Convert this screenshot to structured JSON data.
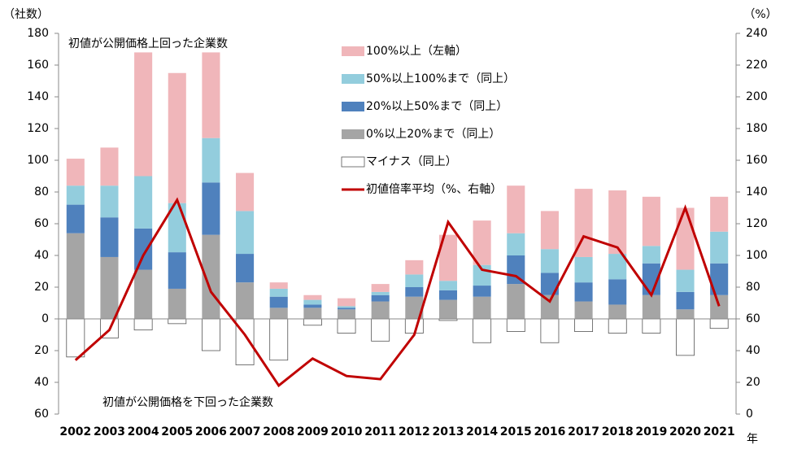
{
  "chart_data": {
    "type": "bar",
    "annotations": [
      "（社数）",
      "（%）",
      "年",
      "初値が公開価格上回った企業数",
      "初値が公開価格を下回った企業数"
    ],
    "categories": [
      "2002",
      "2003",
      "2004",
      "2005",
      "2006",
      "2007",
      "2008",
      "2009",
      "2010",
      "2011",
      "2012",
      "2013",
      "2014",
      "2015",
      "2016",
      "2017",
      "2018",
      "2019",
      "2020",
      "2021"
    ],
    "series": [
      {
        "name": "100%以上（左軸）",
        "color": "#f0b6ba",
        "values": [
          17,
          24,
          78,
          82,
          54,
          24,
          4,
          3,
          5,
          5,
          9,
          29,
          28,
          30,
          24,
          43,
          40,
          31,
          39,
          22
        ]
      },
      {
        "name": "50%以上100%まで（同上）",
        "color": "#93cddd",
        "values": [
          12,
          20,
          33,
          31,
          28,
          27,
          5,
          3,
          1,
          2,
          8,
          6,
          13,
          14,
          15,
          16,
          16,
          11,
          14,
          20
        ]
      },
      {
        "name": "20%以上50%まで（同上）",
        "color": "#4f81bd",
        "values": [
          18,
          25,
          26,
          23,
          33,
          18,
          7,
          2,
          1,
          4,
          6,
          6,
          7,
          18,
          14,
          12,
          16,
          20,
          11,
          20
        ]
      },
      {
        "name": "0%以上20%まで（同上）",
        "color": "#a5a5a5",
        "values": [
          54,
          39,
          31,
          19,
          53,
          23,
          7,
          7,
          6,
          11,
          14,
          12,
          14,
          22,
          15,
          11,
          9,
          15,
          6,
          15
        ]
      },
      {
        "name": "マイナス（同上）",
        "color": "#ffffff",
        "values": [
          -24,
          -12,
          -7,
          -3,
          -20,
          -29,
          -26,
          -4,
          -9,
          -14,
          -9,
          -1,
          -15,
          -8,
          -15,
          -8,
          -9,
          -9,
          -23,
          -6
        ]
      },
      {
        "name": "初値倍率平均（%、右軸）",
        "color": "#c00000",
        "axis": "y2",
        "values": [
          34,
          53,
          100,
          135,
          77,
          50,
          18,
          35,
          24,
          22,
          50,
          121,
          91,
          87,
          71,
          112,
          105,
          75,
          130,
          68
        ]
      }
    ],
    "ylim": [
      -60,
      180
    ],
    "yticks": [
      {
        "value": -60,
        "label": "60"
      },
      {
        "value": -40,
        "label": "40"
      },
      {
        "value": -20,
        "label": "20"
      },
      0,
      20,
      40,
      60,
      80,
      100,
      120,
      140,
      160,
      180
    ],
    "y2lim": [
      0,
      240
    ],
    "y2ticks": [
      0,
      20,
      40,
      60,
      80,
      100,
      120,
      140,
      160,
      180,
      200,
      220,
      240
    ]
  }
}
